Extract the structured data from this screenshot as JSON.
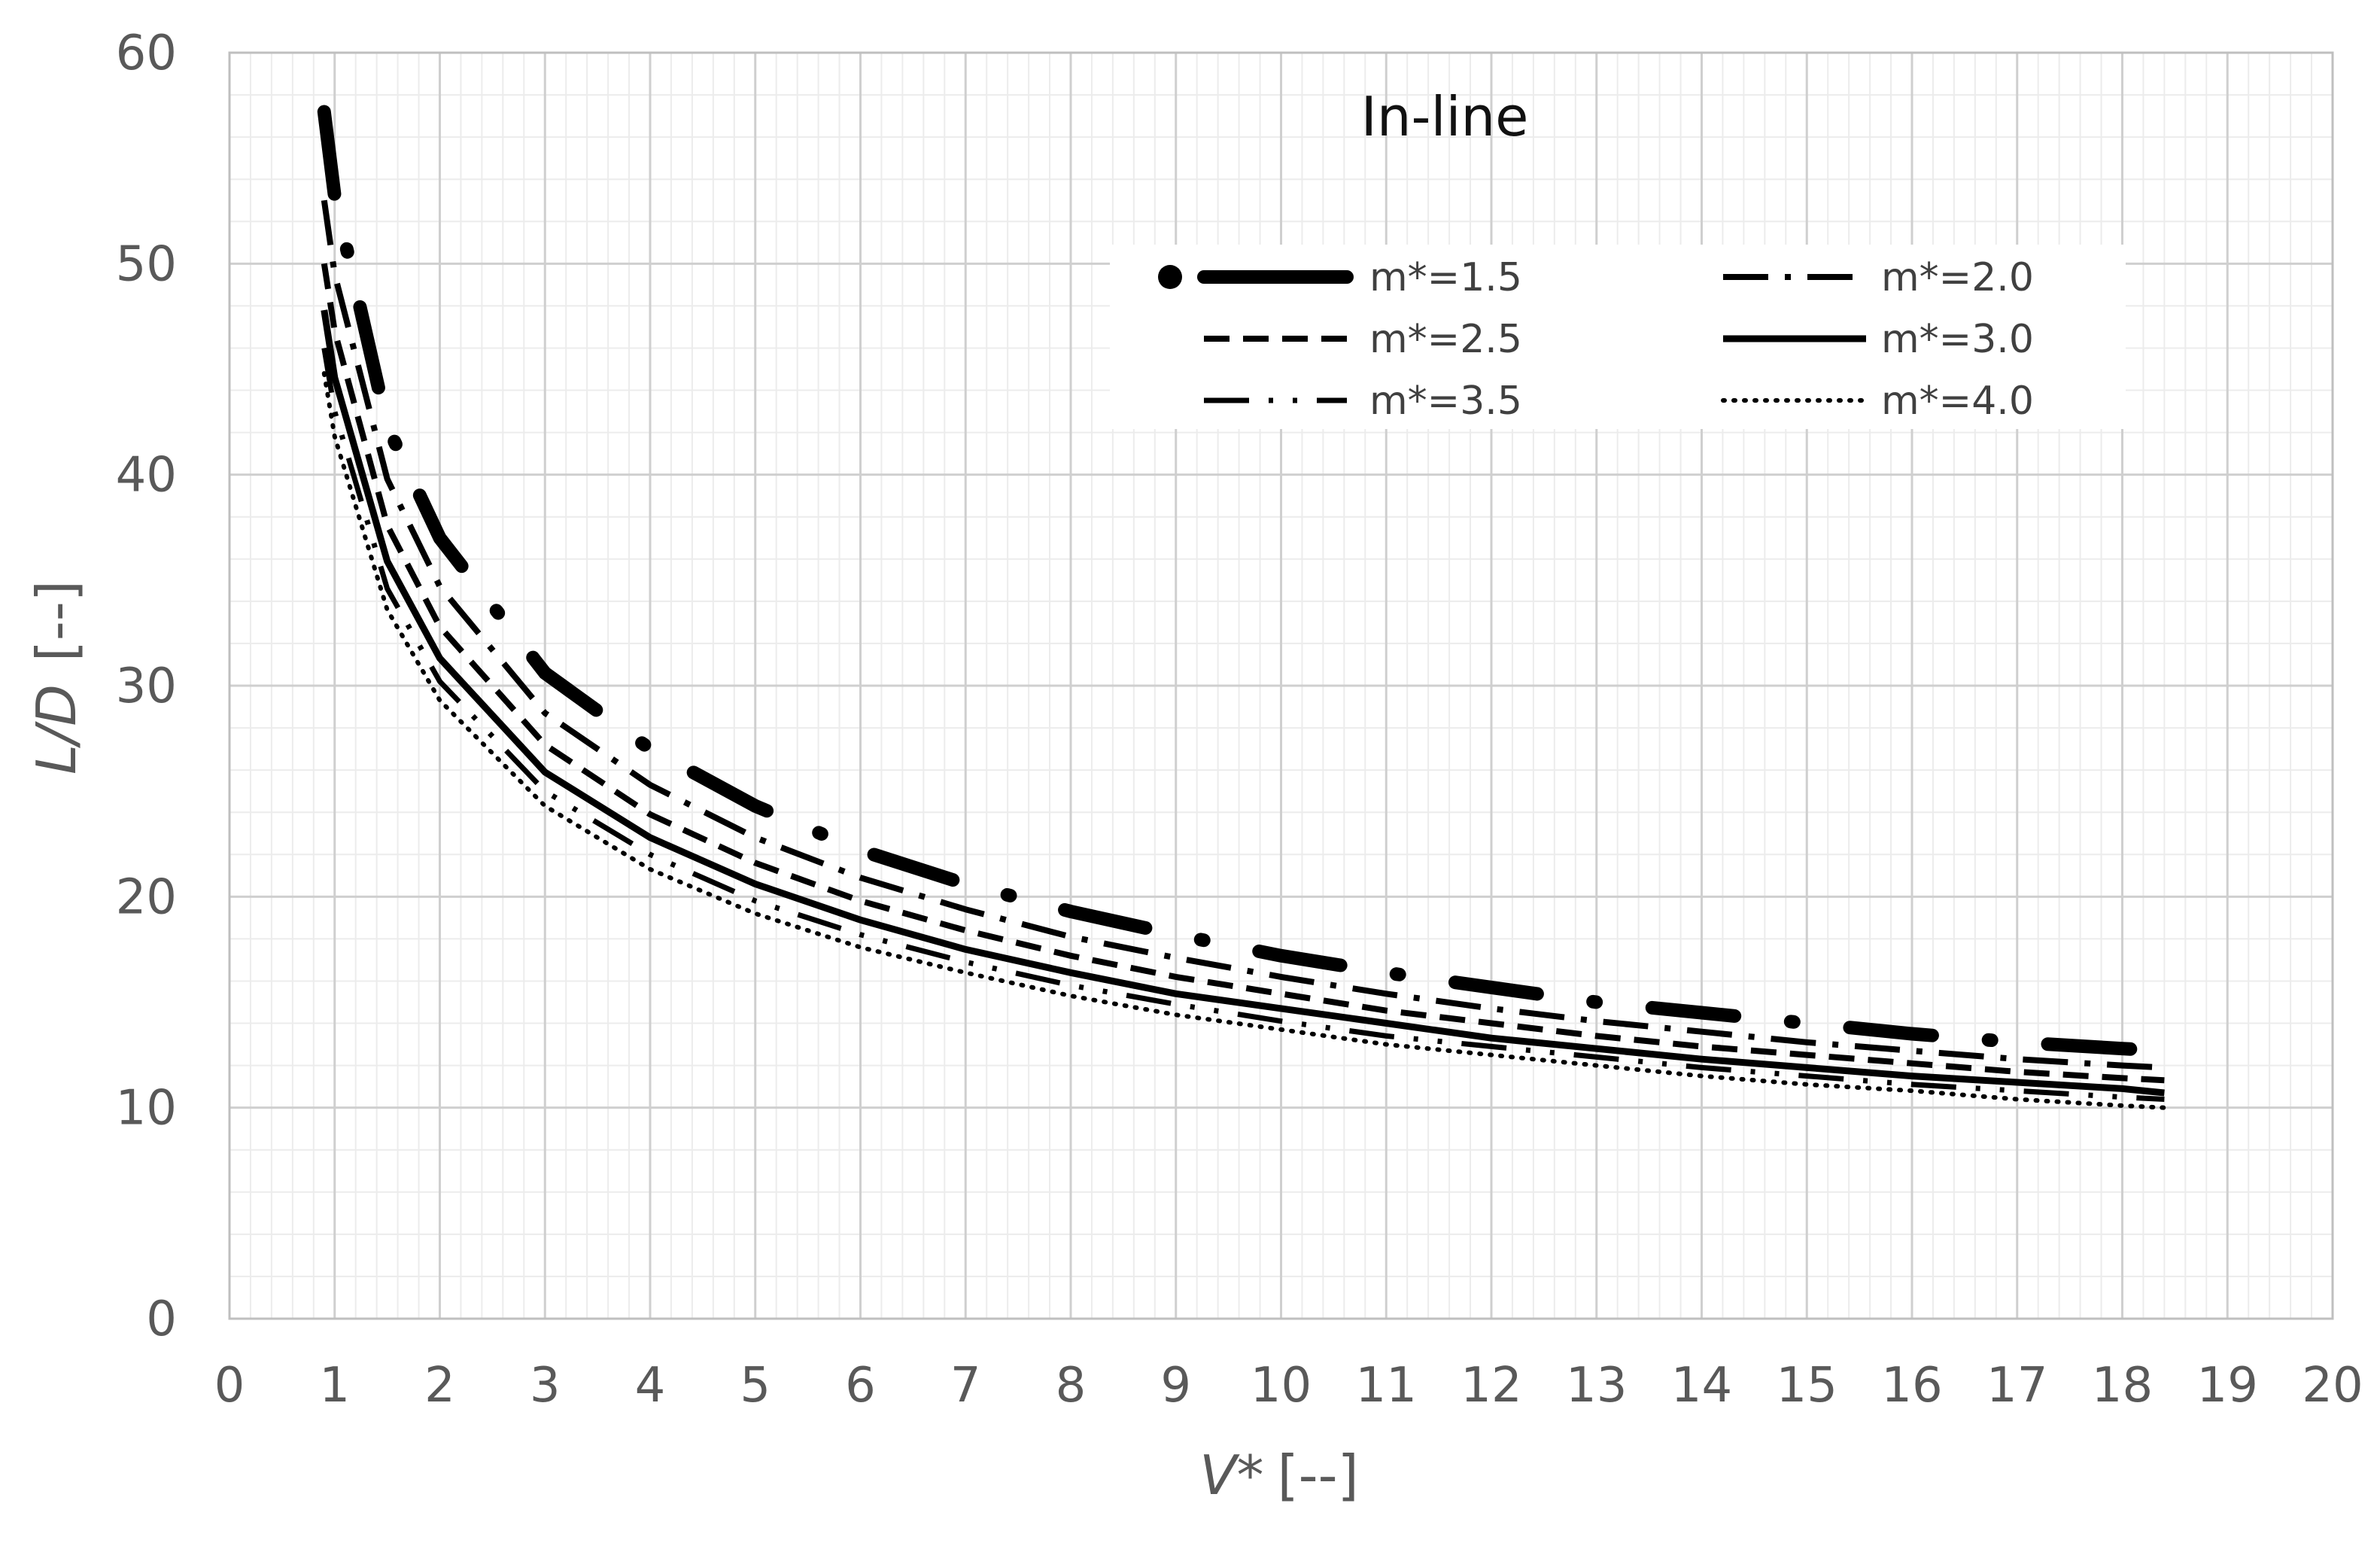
{
  "chart_data": {
    "type": "line",
    "annotation": "In-line",
    "xlabel_main": "V*",
    "xlabel_unit": "[--]",
    "ylabel_main": "L/D",
    "ylabel_unit": "[--]",
    "xlim": [
      0,
      20
    ],
    "ylim": [
      0,
      60
    ],
    "x_ticks": [
      "0",
      "1",
      "2",
      "3",
      "4",
      "5",
      "6",
      "7",
      "8",
      "9",
      "10",
      "11",
      "12",
      "13",
      "14",
      "15",
      "16",
      "17",
      "18",
      "19",
      "20"
    ],
    "y_ticks": [
      "0",
      "10",
      "20",
      "30",
      "40",
      "50",
      "60"
    ],
    "grid": true,
    "minor_grid": true,
    "legend_position": "top-right",
    "series": [
      {
        "name": "m*=1.5",
        "style": "heavy-dash-dot",
        "x": [
          0.9,
          1.0,
          1.5,
          2.0,
          3.0,
          4.0,
          5.0,
          6.0,
          7.0,
          8.0,
          9.0,
          10.0,
          11.0,
          12.0,
          13.0,
          14.0,
          15.0,
          16.0,
          17.0,
          18.0,
          18.4
        ],
        "y": [
          57.2,
          53.2,
          42.3,
          37.0,
          30.6,
          27.0,
          24.3,
          22.2,
          20.6,
          19.3,
          18.2,
          17.2,
          16.4,
          15.7,
          15.0,
          14.5,
          14.0,
          13.5,
          13.1,
          12.8,
          12.7
        ]
      },
      {
        "name": "m*=2.0",
        "style": "long-dash-dot",
        "x": [
          0.9,
          1.0,
          1.5,
          2.0,
          3.0,
          4.0,
          5.0,
          6.0,
          7.0,
          8.0,
          9.0,
          10.0,
          11.0,
          12.0,
          13.0,
          14.0,
          15.0,
          16.0,
          17.0,
          18.0,
          18.4
        ],
        "y": [
          53.0,
          49.5,
          39.8,
          34.7,
          28.7,
          25.3,
          22.8,
          20.9,
          19.4,
          18.1,
          17.1,
          16.2,
          15.4,
          14.7,
          14.1,
          13.6,
          13.1,
          12.7,
          12.3,
          12.0,
          11.9
        ]
      },
      {
        "name": "m*=2.5",
        "style": "dash",
        "x": [
          0.9,
          1.0,
          1.5,
          2.0,
          3.0,
          4.0,
          5.0,
          6.0,
          7.0,
          8.0,
          9.0,
          10.0,
          11.0,
          12.0,
          13.0,
          14.0,
          15.0,
          16.0,
          17.0,
          18.0,
          18.4
        ],
        "y": [
          50.0,
          46.8,
          37.6,
          32.8,
          27.2,
          23.9,
          21.6,
          19.8,
          18.4,
          17.2,
          16.2,
          15.4,
          14.6,
          14.0,
          13.4,
          12.9,
          12.5,
          12.1,
          11.7,
          11.4,
          11.3
        ]
      },
      {
        "name": "m*=3.0",
        "style": "solid",
        "x": [
          0.9,
          1.0,
          1.5,
          2.0,
          3.0,
          4.0,
          5.0,
          6.0,
          7.0,
          8.0,
          9.0,
          10.0,
          11.0,
          12.0,
          13.0,
          14.0,
          15.0,
          16.0,
          17.0,
          18.0,
          18.4
        ],
        "y": [
          47.8,
          44.6,
          35.9,
          31.3,
          25.9,
          22.8,
          20.6,
          18.9,
          17.5,
          16.4,
          15.4,
          14.7,
          14.0,
          13.3,
          12.8,
          12.3,
          11.9,
          11.5,
          11.2,
          10.9,
          10.7
        ]
      },
      {
        "name": "m*=3.5",
        "style": "long-dash-dot-sparse",
        "x": [
          0.9,
          1.0,
          1.5,
          2.0,
          3.0,
          4.0,
          5.0,
          6.0,
          7.0,
          8.0,
          9.0,
          10.0,
          11.0,
          12.0,
          13.0,
          14.0,
          15.0,
          16.0,
          17.0,
          18.0,
          18.4
        ],
        "y": [
          46.0,
          43.0,
          34.6,
          30.2,
          25.0,
          22.0,
          19.8,
          18.2,
          16.9,
          15.8,
          14.9,
          14.1,
          13.4,
          12.9,
          12.4,
          11.9,
          11.5,
          11.1,
          10.8,
          10.5,
          10.4
        ]
      },
      {
        "name": "m*=4.0",
        "style": "dot",
        "x": [
          0.9,
          1.0,
          1.5,
          2.0,
          3.0,
          4.0,
          5.0,
          6.0,
          7.0,
          8.0,
          9.0,
          10.0,
          11.0,
          12.0,
          13.0,
          14.0,
          15.0,
          16.0,
          17.0,
          18.0,
          18.4
        ],
        "y": [
          44.8,
          41.8,
          33.6,
          29.3,
          24.3,
          21.3,
          19.2,
          17.6,
          16.4,
          15.3,
          14.4,
          13.7,
          13.0,
          12.5,
          12.0,
          11.5,
          11.1,
          10.8,
          10.4,
          10.1,
          10.0
        ]
      }
    ]
  }
}
